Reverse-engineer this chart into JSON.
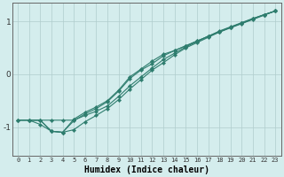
{
  "xlabel": "Humidex (Indice chaleur)",
  "background_color": "#d4eded",
  "plot_bg_color": "#d4eded",
  "grid_color": "#b0cccc",
  "line_color": "#2e7d6e",
  "xlim": [
    -0.5,
    23.5
  ],
  "ylim": [
    -1.55,
    1.35
  ],
  "yticks": [
    -1,
    0,
    1
  ],
  "xticks": [
    0,
    1,
    2,
    3,
    4,
    5,
    6,
    7,
    8,
    9,
    10,
    11,
    12,
    13,
    14,
    15,
    16,
    17,
    18,
    19,
    20,
    21,
    22,
    23
  ],
  "series": [
    {
      "x": [
        0,
        1,
        2,
        3,
        4,
        5,
        6,
        7,
        8,
        9,
        10,
        11,
        12,
        13,
        14,
        15,
        16,
        17,
        18,
        19,
        20,
        21,
        22,
        23
      ],
      "y": [
        -0.87,
        -0.87,
        -0.87,
        -0.87,
        -0.87,
        -0.87,
        -0.78,
        -0.7,
        -0.6,
        -0.42,
        -0.22,
        -0.05,
        0.12,
        0.28,
        0.4,
        0.52,
        0.62,
        0.72,
        0.82,
        0.9,
        0.98,
        1.06,
        1.13,
        1.2
      ]
    },
    {
      "x": [
        0,
        1,
        2,
        3,
        4,
        5,
        6,
        7,
        8,
        9,
        10,
        11,
        12,
        13,
        14,
        15,
        16,
        17,
        18,
        19,
        20,
        21,
        22,
        23
      ],
      "y": [
        -0.87,
        -0.87,
        -0.95,
        -1.08,
        -1.1,
        -1.05,
        -0.9,
        -0.78,
        -0.65,
        -0.48,
        -0.28,
        -0.1,
        0.08,
        0.22,
        0.37,
        0.5,
        0.6,
        0.7,
        0.8,
        0.88,
        0.96,
        1.04,
        1.12,
        1.2
      ]
    },
    {
      "x": [
        0,
        1,
        2,
        3,
        4,
        5,
        6,
        7,
        8,
        9,
        10,
        11,
        12,
        13,
        14,
        15,
        16,
        17,
        18,
        19,
        20,
        21,
        22,
        23
      ],
      "y": [
        -0.87,
        -0.87,
        -0.87,
        -1.08,
        -1.1,
        -0.85,
        -0.72,
        -0.62,
        -0.5,
        -0.3,
        -0.05,
        0.1,
        0.25,
        0.38,
        0.45,
        0.54,
        0.63,
        0.72,
        0.8,
        0.89,
        0.97,
        1.05,
        1.13,
        1.2
      ]
    },
    {
      "x": [
        1,
        2,
        3,
        4,
        5,
        6,
        7,
        8,
        9,
        10,
        11,
        12,
        13,
        14,
        15,
        16,
        17,
        18,
        19,
        20,
        21,
        22,
        23
      ],
      "y": [
        -0.87,
        -0.87,
        -1.08,
        -1.1,
        -0.88,
        -0.75,
        -0.65,
        -0.52,
        -0.32,
        -0.08,
        0.08,
        0.2,
        0.35,
        0.45,
        0.54,
        0.63,
        0.72,
        0.81,
        0.89,
        0.97,
        1.05,
        1.13,
        1.2
      ]
    }
  ]
}
